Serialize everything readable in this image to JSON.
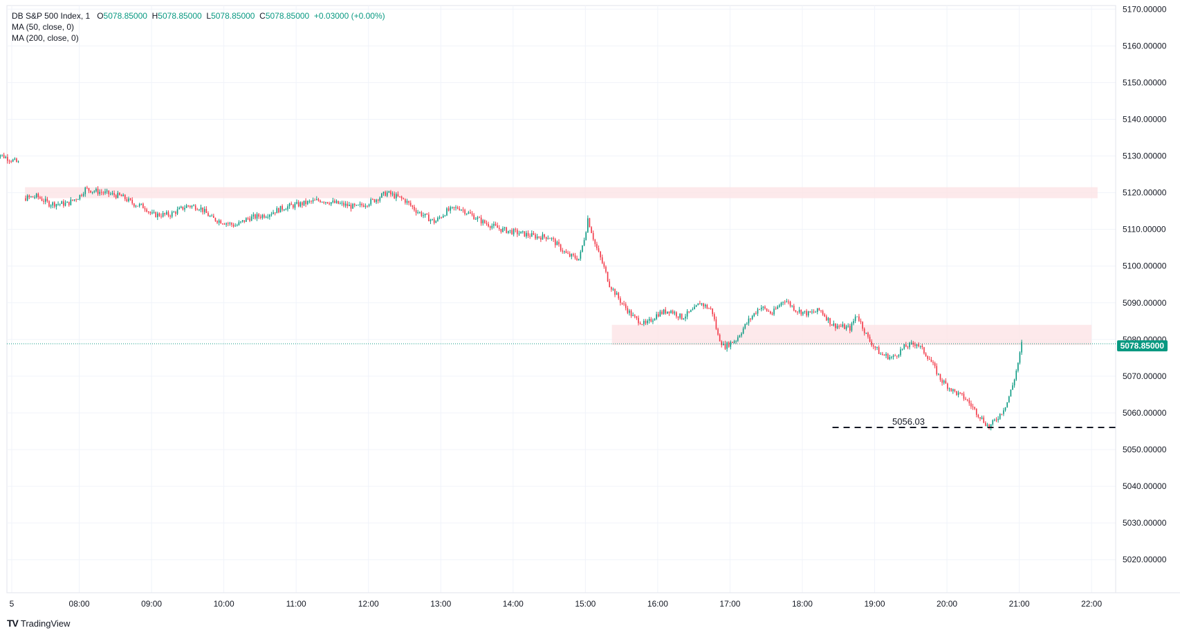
{
  "legend": {
    "symbol": "DB S&P 500 Index, 1",
    "o_key": "O",
    "o_val": "5078.85000",
    "h_key": "H",
    "h_val": "5078.85000",
    "l_key": "L",
    "l_val": "5078.85000",
    "c_key": "C",
    "c_val": "5078.85000",
    "change": "+0.03000 (+0.00%)",
    "ma50": "MA (50, close, 0)",
    "ma200": "MA (200, close, 0)"
  },
  "brand": {
    "logo": "TV",
    "name": "TradingView"
  },
  "last_price_label": "5078.85000",
  "annotation_label": "5056.03",
  "colors": {
    "up": "#089981",
    "down": "#f23645",
    "zone": "#fde4e6",
    "grid": "#f0f3fa",
    "axis_text": "#131722",
    "tag": "#089981"
  },
  "chart_data": {
    "type": "candlestick",
    "xlabel": "",
    "ylabel": "",
    "y_ticks": [
      5020,
      5030,
      5040,
      5050,
      5060,
      5070,
      5080,
      5090,
      5100,
      5110,
      5120,
      5130,
      5140,
      5150,
      5160,
      5170
    ],
    "y_tick_labels": [
      "5020.00000",
      "5030.00000",
      "5040.00000",
      "5050.00000",
      "5060.00000",
      "5070.00000",
      "5080.00000",
      "5090.00000",
      "5100.00000",
      "5110.00000",
      "5120.00000",
      "5130.00000",
      "5140.00000",
      "5150.00000",
      "5160.00000",
      "5170.00000"
    ],
    "ylim": [
      5011,
      5171
    ],
    "xlim": [
      "07:00",
      "22:20"
    ],
    "x_tick_labels": [
      "5",
      "08:00",
      "09:00",
      "10:00",
      "11:00",
      "12:00",
      "13:00",
      "14:00",
      "15:00",
      "16:00",
      "17:00",
      "18:00",
      "19:00",
      "20:00",
      "21:00",
      "22:00"
    ],
    "x_tick_times": [
      "07:04",
      "08:00",
      "09:00",
      "10:00",
      "11:00",
      "12:00",
      "13:00",
      "14:00",
      "15:00",
      "16:00",
      "17:00",
      "18:00",
      "19:00",
      "20:00",
      "21:00",
      "22:00"
    ],
    "price_path": [
      [
        "06:50",
        5131
      ],
      [
        "07:10",
        5128
      ],
      [
        "07:15",
        5118.5
      ],
      [
        "07:25",
        5119
      ],
      [
        "07:35",
        5117
      ],
      [
        "07:50",
        5117
      ],
      [
        "08:00",
        5119
      ],
      [
        "08:05",
        5121
      ],
      [
        "08:20",
        5120
      ],
      [
        "08:35",
        5119
      ],
      [
        "08:45",
        5117
      ],
      [
        "08:55",
        5116
      ],
      [
        "09:00",
        5114
      ],
      [
        "09:15",
        5114
      ],
      [
        "09:30",
        5116.5
      ],
      [
        "09:40",
        5116
      ],
      [
        "09:50",
        5113
      ],
      [
        "10:00",
        5112
      ],
      [
        "10:10",
        5111
      ],
      [
        "10:20",
        5113
      ],
      [
        "10:35",
        5114
      ],
      [
        "10:50",
        5116
      ],
      [
        "11:05",
        5117
      ],
      [
        "11:20",
        5118
      ],
      [
        "11:35",
        5117
      ],
      [
        "11:50",
        5116
      ],
      [
        "12:05",
        5118
      ],
      [
        "12:15",
        5120
      ],
      [
        "12:30",
        5118
      ],
      [
        "12:40",
        5115
      ],
      [
        "12:55",
        5112
      ],
      [
        "13:05",
        5115
      ],
      [
        "13:15",
        5116
      ],
      [
        "13:25",
        5114
      ],
      [
        "13:35",
        5112
      ],
      [
        "13:50",
        5110
      ],
      [
        "14:05",
        5109
      ],
      [
        "14:20",
        5108
      ],
      [
        "14:30",
        5108
      ],
      [
        "14:45",
        5103
      ],
      [
        "14:55",
        5102
      ],
      [
        "15:00",
        5109
      ],
      [
        "15:02",
        5113
      ],
      [
        "15:08",
        5106
      ],
      [
        "15:15",
        5100
      ],
      [
        "15:20",
        5095
      ],
      [
        "15:30",
        5090
      ],
      [
        "15:40",
        5086
      ],
      [
        "15:50",
        5084
      ],
      [
        "16:00",
        5087
      ],
      [
        "16:10",
        5088
      ],
      [
        "16:20",
        5086
      ],
      [
        "16:30",
        5088
      ],
      [
        "16:35",
        5090
      ],
      [
        "16:45",
        5088
      ],
      [
        "16:50",
        5081
      ],
      [
        "16:55",
        5078
      ],
      [
        "17:05",
        5080
      ],
      [
        "17:15",
        5085
      ],
      [
        "17:25",
        5089
      ],
      [
        "17:35",
        5087
      ],
      [
        "17:45",
        5091
      ],
      [
        "17:55",
        5088
      ],
      [
        "18:05",
        5087
      ],
      [
        "18:15",
        5088
      ],
      [
        "18:25",
        5084
      ],
      [
        "18:40",
        5083
      ],
      [
        "18:45",
        5087
      ],
      [
        "18:55",
        5080
      ],
      [
        "19:05",
        5076
      ],
      [
        "19:15",
        5075
      ],
      [
        "19:25",
        5078
      ],
      [
        "19:35",
        5079
      ],
      [
        "19:45",
        5075
      ],
      [
        "19:55",
        5069
      ],
      [
        "20:05",
        5066
      ],
      [
        "20:15",
        5064
      ],
      [
        "20:25",
        5060
      ],
      [
        "20:30",
        5058
      ],
      [
        "20:35",
        5056.03
      ],
      [
        "20:40",
        5058
      ],
      [
        "20:45",
        5060
      ],
      [
        "20:50",
        5063
      ],
      [
        "20:55",
        5068
      ],
      [
        "21:00",
        5075
      ],
      [
        "21:02",
        5078.85
      ]
    ],
    "resistance_zones": [
      {
        "x0": "07:15",
        "x1": "22:05",
        "y0": 5118.5,
        "y1": 5121.5
      },
      {
        "x0": "15:22",
        "x1": "22:00",
        "y0": 5078.5,
        "y1": 5084
      }
    ],
    "support_line": {
      "x0": "18:25",
      "x1": "22:20",
      "y": 5056.03,
      "label": "5056.03"
    },
    "last_price": 5078.85
  }
}
